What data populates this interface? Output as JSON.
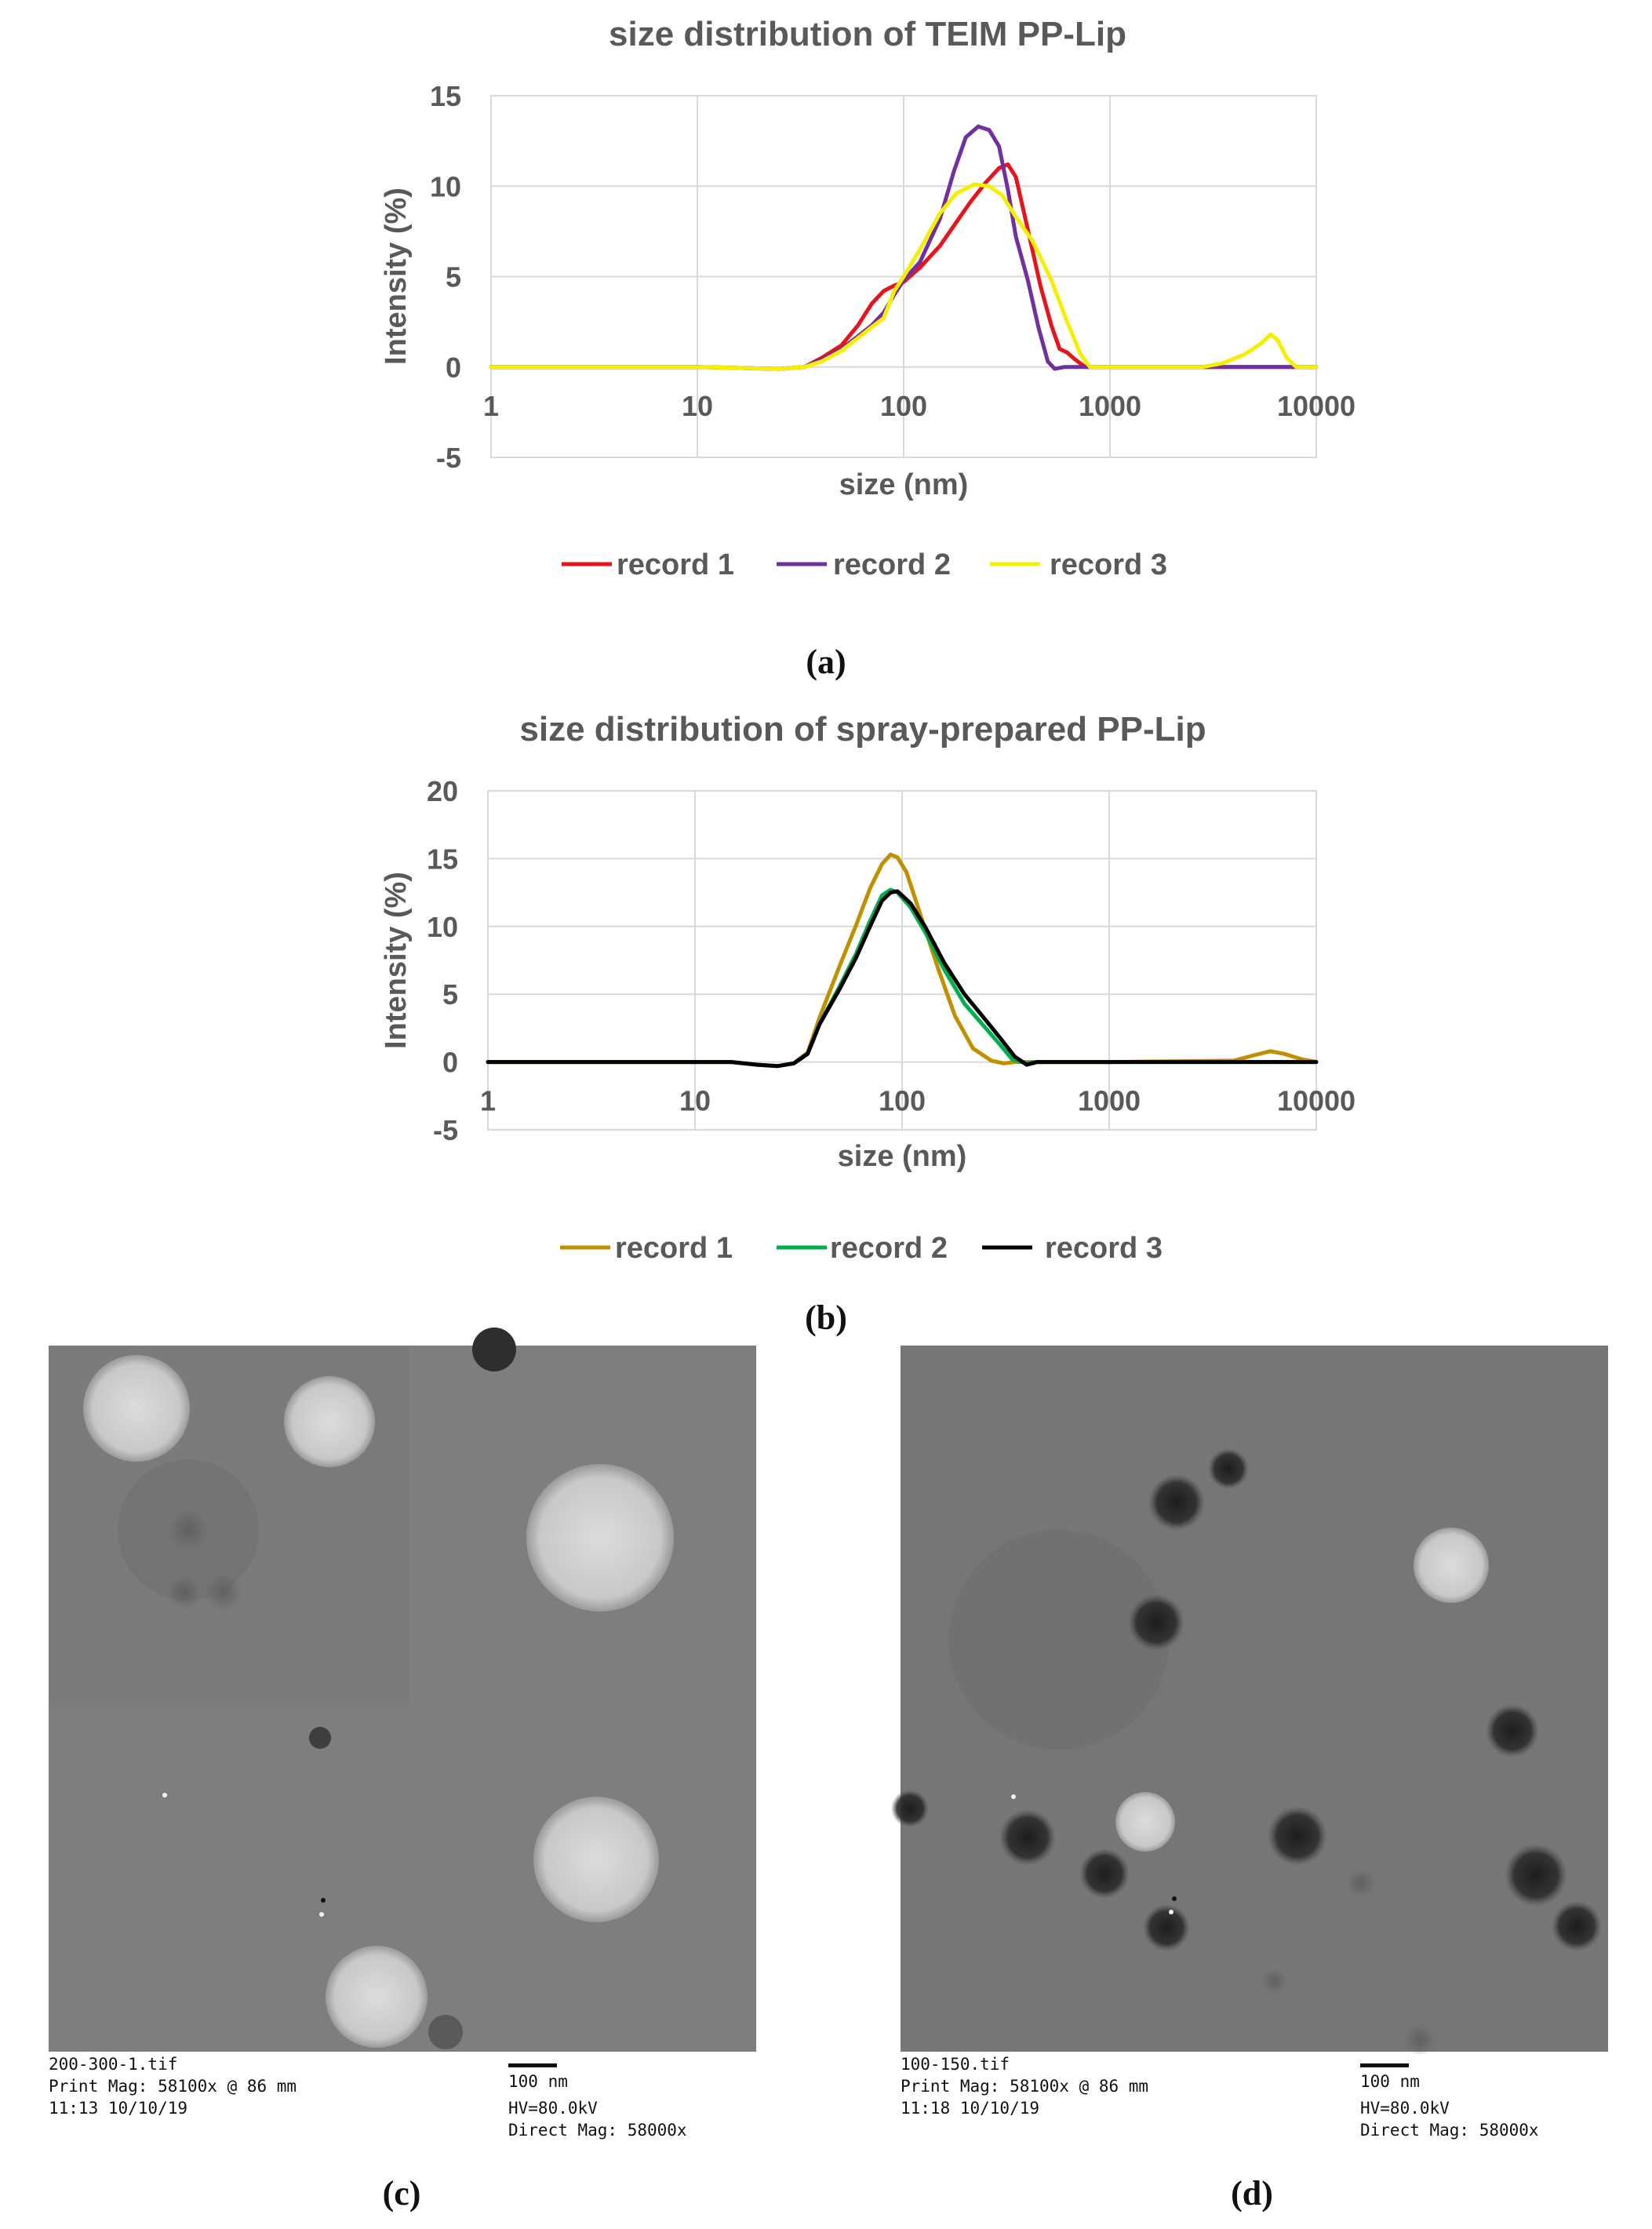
{
  "panels": {
    "a": "(a)",
    "b": "(b)",
    "c": "(c)",
    "d": "(d)"
  },
  "chart_data": [
    {
      "id": "a",
      "type": "line",
      "title": "size distribution of TEIM PP-Lip",
      "xlabel": "size (nm)",
      "ylabel": "Intensity (%)",
      "xscale": "log",
      "xlim": [
        1,
        10000
      ],
      "ylim": [
        -5,
        15
      ],
      "xticks": [
        1,
        10,
        100,
        1000,
        10000
      ],
      "xtick_labels": [
        "1",
        "10",
        "100",
        "1000",
        "10000"
      ],
      "yticks": [
        -5,
        0,
        5,
        10,
        15
      ],
      "ytick_labels": [
        "-5",
        "0",
        "5",
        "10",
        "15"
      ],
      "grid": true,
      "legend_position": "bottom",
      "series": [
        {
          "name": "record 1",
          "color": "#e8141b",
          "points": [
            [
              1,
              0
            ],
            [
              10,
              0
            ],
            [
              25,
              -0.1
            ],
            [
              33,
              0
            ],
            [
              40,
              0.5
            ],
            [
              50,
              1.2
            ],
            [
              60,
              2.3
            ],
            [
              70,
              3.5
            ],
            [
              80,
              4.2
            ],
            [
              90,
              4.5
            ],
            [
              100,
              4.7
            ],
            [
              120,
              5.5
            ],
            [
              150,
              6.7
            ],
            [
              180,
              8.0
            ],
            [
              210,
              9.1
            ],
            [
              250,
              10.2
            ],
            [
              290,
              11.0
            ],
            [
              320,
              11.2
            ],
            [
              350,
              10.5
            ],
            [
              400,
              7.6
            ],
            [
              460,
              4.5
            ],
            [
              520,
              2.3
            ],
            [
              570,
              1.0
            ],
            [
              620,
              0.8
            ],
            [
              680,
              0.4
            ],
            [
              760,
              0
            ],
            [
              1000,
              0
            ],
            [
              10000,
              0
            ]
          ]
        },
        {
          "name": "record 2",
          "color": "#7030a0",
          "points": [
            [
              1,
              0
            ],
            [
              10,
              0
            ],
            [
              25,
              -0.1
            ],
            [
              33,
              0
            ],
            [
              40,
              0.4
            ],
            [
              50,
              1.0
            ],
            [
              60,
              1.7
            ],
            [
              70,
              2.3
            ],
            [
              80,
              3.0
            ],
            [
              90,
              4.0
            ],
            [
              100,
              4.8
            ],
            [
              120,
              5.8
            ],
            [
              150,
              8.2
            ],
            [
              175,
              10.8
            ],
            [
              200,
              12.7
            ],
            [
              230,
              13.3
            ],
            [
              260,
              13.1
            ],
            [
              290,
              12.2
            ],
            [
              320,
              9.8
            ],
            [
              350,
              7.2
            ],
            [
              400,
              4.8
            ],
            [
              450,
              2.2
            ],
            [
              500,
              0.3
            ],
            [
              540,
              -0.1
            ],
            [
              600,
              0
            ],
            [
              1000,
              0
            ],
            [
              10000,
              0
            ]
          ]
        },
        {
          "name": "record 3",
          "color": "#f6f000",
          "points": [
            [
              1,
              0
            ],
            [
              10,
              0
            ],
            [
              25,
              -0.1
            ],
            [
              33,
              0
            ],
            [
              40,
              0.3
            ],
            [
              50,
              0.9
            ],
            [
              60,
              1.6
            ],
            [
              70,
              2.2
            ],
            [
              80,
              2.7
            ],
            [
              90,
              4.2
            ],
            [
              100,
              5.0
            ],
            [
              120,
              6.5
            ],
            [
              150,
              8.5
            ],
            [
              180,
              9.6
            ],
            [
              220,
              10.1
            ],
            [
              260,
              10.0
            ],
            [
              300,
              9.5
            ],
            [
              350,
              8.3
            ],
            [
              420,
              7.0
            ],
            [
              520,
              4.8
            ],
            [
              620,
              2.5
            ],
            [
              720,
              0.7
            ],
            [
              800,
              0
            ],
            [
              1000,
              0
            ],
            [
              2800,
              0
            ],
            [
              3500,
              0.2
            ],
            [
              4500,
              0.7
            ],
            [
              5400,
              1.3
            ],
            [
              6000,
              1.8
            ],
            [
              6500,
              1.5
            ],
            [
              7200,
              0.5
            ],
            [
              8000,
              0
            ],
            [
              10000,
              0
            ]
          ]
        }
      ]
    },
    {
      "id": "b",
      "type": "line",
      "title": "size distribution of spray-prepared PP-Lip",
      "xlabel": "size (nm)",
      "ylabel": "Intensity (%)",
      "xscale": "log",
      "xlim": [
        1,
        10000
      ],
      "ylim": [
        -5,
        20
      ],
      "xticks": [
        1,
        10,
        100,
        1000,
        10000
      ],
      "xtick_labels": [
        "1",
        "10",
        "100",
        "1000",
        "10000"
      ],
      "yticks": [
        -5,
        0,
        5,
        10,
        15,
        20
      ],
      "ytick_labels": [
        "-5",
        "0",
        "5",
        "10",
        "15",
        "20"
      ],
      "grid": true,
      "legend_position": "bottom",
      "series": [
        {
          "name": "record 1",
          "color": "#bf9000",
          "points": [
            [
              1,
              0
            ],
            [
              10,
              0
            ],
            [
              15,
              0
            ],
            [
              20,
              -0.2
            ],
            [
              25,
              -0.3
            ],
            [
              30,
              -0.1
            ],
            [
              35,
              0.7
            ],
            [
              40,
              3.3
            ],
            [
              50,
              7.1
            ],
            [
              60,
              10.1
            ],
            [
              70,
              12.8
            ],
            [
              80,
              14.6
            ],
            [
              88,
              15.3
            ],
            [
              95,
              15.1
            ],
            [
              105,
              14.0
            ],
            [
              120,
              11.3
            ],
            [
              150,
              6.8
            ],
            [
              180,
              3.4
            ],
            [
              220,
              1.0
            ],
            [
              270,
              0.1
            ],
            [
              310,
              -0.1
            ],
            [
              350,
              0
            ],
            [
              1000,
              0
            ],
            [
              4000,
              0.1
            ],
            [
              5000,
              0.5
            ],
            [
              6000,
              0.8
            ],
            [
              7000,
              0.6
            ],
            [
              8500,
              0.2
            ],
            [
              10000,
              0
            ]
          ]
        },
        {
          "name": "record 2",
          "color": "#00b050",
          "points": [
            [
              1,
              0
            ],
            [
              10,
              0
            ],
            [
              15,
              0
            ],
            [
              20,
              -0.2
            ],
            [
              25,
              -0.3
            ],
            [
              30,
              -0.1
            ],
            [
              35,
              0.6
            ],
            [
              40,
              2.8
            ],
            [
              50,
              5.6
            ],
            [
              60,
              8.0
            ],
            [
              70,
              10.4
            ],
            [
              80,
              12.3
            ],
            [
              88,
              12.7
            ],
            [
              95,
              12.5
            ],
            [
              110,
              11.4
            ],
            [
              130,
              9.5
            ],
            [
              160,
              6.8
            ],
            [
              200,
              4.3
            ],
            [
              250,
              2.6
            ],
            [
              300,
              1.2
            ],
            [
              340,
              0.2
            ],
            [
              400,
              -0.1
            ],
            [
              450,
              0
            ],
            [
              1000,
              0
            ],
            [
              10000,
              0
            ]
          ]
        },
        {
          "name": "record 3",
          "color": "#000000",
          "points": [
            [
              1,
              0
            ],
            [
              10,
              0
            ],
            [
              15,
              0
            ],
            [
              20,
              -0.2
            ],
            [
              25,
              -0.3
            ],
            [
              30,
              -0.1
            ],
            [
              35,
              0.6
            ],
            [
              40,
              2.8
            ],
            [
              50,
              5.4
            ],
            [
              60,
              7.7
            ],
            [
              70,
              10.0
            ],
            [
              80,
              11.9
            ],
            [
              88,
              12.5
            ],
            [
              95,
              12.6
            ],
            [
              110,
              11.7
            ],
            [
              130,
              9.9
            ],
            [
              160,
              7.3
            ],
            [
              200,
              5.0
            ],
            [
              250,
              3.2
            ],
            [
              300,
              1.7
            ],
            [
              350,
              0.4
            ],
            [
              400,
              -0.2
            ],
            [
              450,
              0
            ],
            [
              1000,
              0
            ],
            [
              10000,
              0
            ]
          ]
        }
      ]
    }
  ],
  "tem_c": {
    "file": "200-300-1.tif",
    "print_mag": "Print Mag: 58100x @ 86 mm",
    "datetime": "11:13 10/10/19",
    "scale": "100 nm",
    "hv": "HV=80.0kV",
    "direct_mag": "Direct Mag: 58000x"
  },
  "tem_d": {
    "file": "100-150.tif",
    "print_mag": "Print Mag: 58100x @ 86 mm",
    "datetime": "11:18 10/10/19",
    "scale": "100 nm",
    "hv": "HV=80.0kV",
    "direct_mag": "Direct Mag: 58000x"
  }
}
